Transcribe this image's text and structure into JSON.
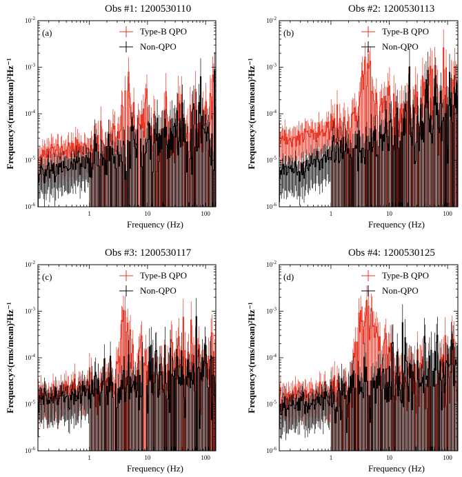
{
  "chart_data": [
    {
      "type": "step",
      "title": "Obs #1: 1200530110",
      "panel_label": "(a)",
      "xlabel": "Frequency (Hz)",
      "ylabel": "Frequency×(rms/mean)²Hz⁻¹",
      "xscale": "log",
      "yscale": "log",
      "xlim": [
        0.13,
        150
      ],
      "ylim": [
        1e-06,
        0.01
      ],
      "x_ticks": [
        {
          "v": 1,
          "label": "1"
        },
        {
          "v": 10,
          "label": "10"
        },
        {
          "v": 100,
          "label": "100"
        }
      ],
      "y_ticks": [
        {
          "v": 1e-06,
          "base": "10",
          "exp": "-6"
        },
        {
          "v": 1e-05,
          "base": "10",
          "exp": "-5"
        },
        {
          "v": 0.0001,
          "base": "10",
          "exp": "-4"
        },
        {
          "v": 0.001,
          "base": "10",
          "exp": "-3"
        },
        {
          "v": 0.01,
          "base": "10",
          "exp": "-2"
        }
      ],
      "qpo_freq": 4.5,
      "qpo_peak": 0.0005,
      "qpo_width": 0.045,
      "red_level": 1.4e-05,
      "red_slope": 0.3,
      "black_level": 5.5e-06,
      "black_slope": 0.55,
      "seed": 11,
      "legend": [
        {
          "name": "Type-B QPO",
          "color": "#e8301f"
        },
        {
          "name": "Non-QPO",
          "color": "#000000"
        }
      ]
    },
    {
      "type": "step",
      "title": "Obs #2: 1200530113",
      "panel_label": "(b)",
      "xlabel": "Frequency (Hz)",
      "ylabel": "Frequency×(rms/mean)²Hz⁻¹",
      "xscale": "log",
      "yscale": "log",
      "xlim": [
        0.13,
        150
      ],
      "ylim": [
        1e-06,
        0.01
      ],
      "x_ticks": [
        {
          "v": 1,
          "label": "1"
        },
        {
          "v": 10,
          "label": "10"
        },
        {
          "v": 100,
          "label": "100"
        }
      ],
      "y_ticks": [
        {
          "v": 1e-06,
          "base": "10",
          "exp": "-6"
        },
        {
          "v": 1e-05,
          "base": "10",
          "exp": "-5"
        },
        {
          "v": 0.0001,
          "base": "10",
          "exp": "-4"
        },
        {
          "v": 0.001,
          "base": "10",
          "exp": "-3"
        },
        {
          "v": 0.01,
          "base": "10",
          "exp": "-2"
        }
      ],
      "qpo_freq": 4.3,
      "qpo_peak": 0.00105,
      "qpo_width": 0.06,
      "red_level": 2.5e-05,
      "red_slope": 0.55,
      "black_level": 5e-06,
      "black_slope": 0.8,
      "seed": 23,
      "legend": [
        {
          "name": "Type-B QPO",
          "color": "#e8301f"
        },
        {
          "name": "Non-QPO",
          "color": "#000000"
        }
      ]
    },
    {
      "type": "step",
      "title": "Obs #3: 1200530117",
      "panel_label": "(c)",
      "xlabel": "Frequency (Hz)",
      "ylabel": "Frequency×(rms/mean)²Hz⁻¹",
      "xscale": "log",
      "yscale": "log",
      "xlim": [
        0.13,
        150
      ],
      "ylim": [
        1e-06,
        0.01
      ],
      "x_ticks": [
        {
          "v": 1,
          "label": "1"
        },
        {
          "v": 10,
          "label": "10"
        },
        {
          "v": 100,
          "label": "100"
        }
      ],
      "y_ticks": [
        {
          "v": 1e-06,
          "base": "10",
          "exp": "-6"
        },
        {
          "v": 1e-05,
          "base": "10",
          "exp": "-5"
        },
        {
          "v": 0.0001,
          "base": "10",
          "exp": "-4"
        },
        {
          "v": 0.001,
          "base": "10",
          "exp": "-3"
        },
        {
          "v": 0.01,
          "base": "10",
          "exp": "-2"
        }
      ],
      "qpo_freq": 4.2,
      "qpo_peak": 0.00105,
      "qpo_width": 0.05,
      "red_level": 1.6e-05,
      "red_slope": 0.4,
      "black_level": 1.2e-05,
      "black_slope": 0.4,
      "seed": 37,
      "legend": [
        {
          "name": "Type-B QPO",
          "color": "#e8301f"
        },
        {
          "name": "Non-QPO",
          "color": "#000000"
        }
      ]
    },
    {
      "type": "step",
      "title": "Obs #4: 1200530125",
      "panel_label": "(d)",
      "xlabel": "Frequency (Hz)",
      "ylabel": "Frequency×(rms/mean)²Hz⁻¹",
      "xscale": "log",
      "yscale": "log",
      "xlim": [
        0.13,
        150
      ],
      "ylim": [
        1e-06,
        0.01
      ],
      "x_ticks": [
        {
          "v": 1,
          "label": "1"
        },
        {
          "v": 10,
          "label": "10"
        },
        {
          "v": 100,
          "label": "100"
        }
      ],
      "y_ticks": [
        {
          "v": 1e-06,
          "base": "10",
          "exp": "-6"
        },
        {
          "v": 1e-05,
          "base": "10",
          "exp": "-5"
        },
        {
          "v": 0.0001,
          "base": "10",
          "exp": "-4"
        },
        {
          "v": 0.001,
          "base": "10",
          "exp": "-3"
        },
        {
          "v": 0.01,
          "base": "10",
          "exp": "-2"
        }
      ],
      "qpo_freq": 4.0,
      "qpo_peak": 0.0007,
      "qpo_width": 0.09,
      "red_level": 1.3e-05,
      "red_slope": 0.35,
      "black_level": 8e-06,
      "black_slope": 0.5,
      "seed": 53,
      "legend": [
        {
          "name": "Type-B QPO",
          "color": "#e8301f"
        },
        {
          "name": "Non-QPO",
          "color": "#000000"
        }
      ]
    }
  ]
}
